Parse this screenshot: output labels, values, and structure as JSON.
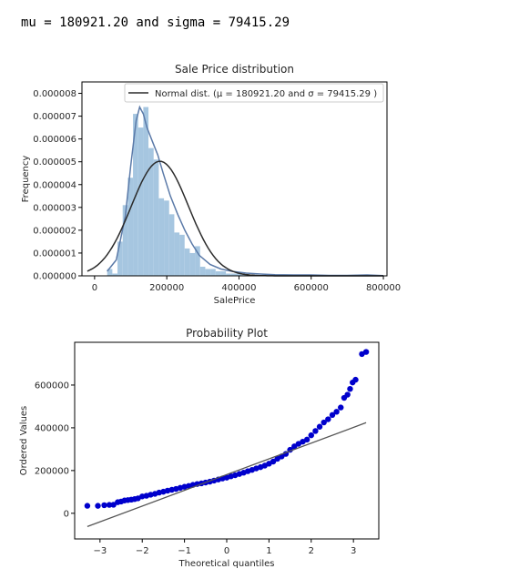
{
  "console_output": "mu = 180921.20 and sigma = 79415.29",
  "chart_data": [
    {
      "type": "histogram",
      "title": "Sale Price distribution",
      "xlabel": "SalePrice",
      "ylabel": "Frequency",
      "xlim": [
        -35000,
        810000
      ],
      "ylim": [
        0,
        8.5e-06
      ],
      "xticks": [
        0,
        200000,
        400000,
        600000,
        800000
      ],
      "xtick_labels": [
        "0",
        "200000",
        "400000",
        "600000",
        "800000"
      ],
      "yticks": [
        0,
        1e-06,
        2e-06,
        3e-06,
        4e-06,
        5e-06,
        6e-06,
        7e-06,
        8e-06
      ],
      "ytick_labels": [
        "0.000000",
        "0.000001",
        "0.000002",
        "0.000003",
        "0.000004",
        "0.000005",
        "0.000006",
        "0.000007",
        "0.000008"
      ],
      "legend": {
        "position": "top-right",
        "entry": "Normal dist. ($\\mu=$ 180921.20 and $\\sigma=$ 79415.29 )",
        "entry_display": "Normal dist. (μ =  180921.20 and σ =  79415.29 )"
      },
      "bins": {
        "start": 34900,
        "width": 14300,
        "values": [
          3e-07,
          1e-07,
          1.5e-06,
          3.1e-06,
          4.3e-06,
          7.1e-06,
          6.5e-06,
          7.4e-06,
          5.6e-06,
          5.1e-06,
          3.4e-06,
          3.3e-06,
          2.7e-06,
          1.9e-06,
          1.8e-06,
          1.2e-06,
          1e-06,
          1.3e-06,
          4e-07,
          3e-07,
          3e-07,
          2e-07,
          2e-07,
          1e-07,
          1e-07,
          1e-07,
          5e-08,
          5e-08,
          5e-08,
          3e-08,
          5e-08,
          3e-08,
          3e-08,
          2e-08,
          2e-08,
          1e-08,
          1e-08,
          1e-08,
          1e-08,
          1e-08,
          1e-08,
          0.0,
          1e-08,
          0.0,
          0.0,
          0.0,
          1e-08,
          1e-08,
          0.0,
          0.0
        ]
      },
      "series": [
        {
          "name": "Normal dist. (μ =  180921.20 and σ =  79415.29 )",
          "mu": 180921.2,
          "sigma": 79415.29,
          "color": "#2b2b2b"
        },
        {
          "kde_x": [
            34900,
            60000,
            85000,
            100000,
            115000,
            125000,
            135000,
            145000,
            160000,
            175000,
            190000,
            210000,
            230000,
            250000,
            270000,
            290000,
            320000,
            350000,
            380000,
            420000,
            460000,
            500000,
            550000,
            600000,
            650000,
            700000,
            755000,
            800000
          ],
          "kde_y": [
            2e-07,
            7e-07,
            2.6e-06,
            4.8e-06,
            6.8e-06,
            7.4e-06,
            7.1e-06,
            6.5e-06,
            5.9e-06,
            5.3e-06,
            4.5e-06,
            3.5e-06,
            2.7e-06,
            2e-06,
            1.4e-06,
            9e-07,
            5e-07,
            3e-07,
            2e-07,
            1.2e-07,
            8e-08,
            5e-08,
            4e-08,
            4e-08,
            2e-08,
            2e-08,
            4e-08,
            1e-08
          ],
          "color": "#5b7aa8"
        }
      ],
      "bar_color": "#a6c6e0"
    },
    {
      "type": "scatter",
      "title": "Probability Plot",
      "xlabel": "Theoretical quantiles",
      "ylabel": "Ordered Values",
      "xlim": [
        -3.6,
        3.6
      ],
      "ylim": [
        -120000,
        800000
      ],
      "xticks": [
        -3,
        -2,
        -1,
        0,
        1,
        2,
        3
      ],
      "xtick_labels": [
        "−3",
        "−2",
        "−1",
        "0",
        "1",
        "2",
        "3"
      ],
      "yticks": [
        0,
        200000,
        400000,
        600000
      ],
      "ytick_labels": [
        "0",
        "200000",
        "400000",
        "600000"
      ],
      "fit_line": {
        "x": [
          -3.3,
          3.3
        ],
        "y": [
          -62000,
          424000
        ],
        "color": "#555555"
      },
      "points": {
        "x": [
          -3.3,
          -3.05,
          -2.9,
          -2.78,
          -2.68,
          -2.58,
          -2.5,
          -2.42,
          -2.34,
          -2.26,
          -2.18,
          -2.1,
          -2.0,
          -1.9,
          -1.8,
          -1.7,
          -1.6,
          -1.5,
          -1.4,
          -1.3,
          -1.2,
          -1.1,
          -1.0,
          -0.9,
          -0.8,
          -0.7,
          -0.6,
          -0.5,
          -0.4,
          -0.3,
          -0.2,
          -0.1,
          0.0,
          0.1,
          0.2,
          0.3,
          0.4,
          0.5,
          0.6,
          0.7,
          0.8,
          0.9,
          1.0,
          1.1,
          1.2,
          1.3,
          1.4,
          1.5,
          1.6,
          1.7,
          1.8,
          1.9,
          2.0,
          2.1,
          2.2,
          2.3,
          2.4,
          2.5,
          2.6,
          2.7,
          2.78,
          2.86,
          2.92,
          2.98,
          3.05,
          3.3
        ],
        "y": [
          35000,
          34900,
          37900,
          39300,
          40000,
          52000,
          55000,
          60000,
          62000,
          64000,
          66500,
          70000,
          79000,
          82000,
          87000,
          91000,
          97000,
          101000,
          106000,
          110000,
          114000,
          119000,
          124000,
          128000,
          133000,
          137000,
          140000,
          144000,
          148000,
          153000,
          158000,
          163000,
          167000,
          173000,
          178000,
          184000,
          190000,
          197000,
          203000,
          210000,
          216000,
          223000,
          232000,
          242000,
          255000,
          266000,
          278000,
          297000,
          313000,
          325000,
          335000,
          345000,
          365000,
          385000,
          405000,
          425000,
          440000,
          460000,
          475000,
          495000,
          540000,
          555000,
          582000,
          612000,
          625000,
          755000
        ],
        "color": "#0000cc"
      },
      "outliers": {
        "x": [
          3.2
        ],
        "y": [
          745000
        ]
      }
    }
  ]
}
